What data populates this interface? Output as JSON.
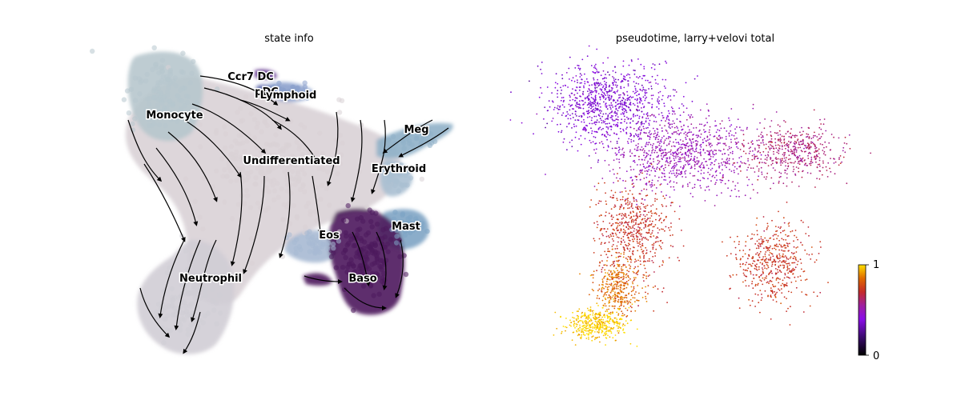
{
  "panels": [
    {
      "title": "state info",
      "type": "scatter",
      "labels": [
        "Ccr7 DC",
        "pDC",
        "Lymphoid",
        "Monocyte",
        "Meg",
        "Undifferentiated",
        "Erythroid",
        "Mast",
        "Eos",
        "Baso",
        "Neutrophil"
      ]
    },
    {
      "title": "pseudotime, larry+velovi total",
      "type": "scatter",
      "colorbar": {
        "min_label": "0",
        "max_label": "1",
        "colormap": "gnuplot"
      }
    }
  ],
  "chart_data": [
    {
      "type": "scatter",
      "title": "state info",
      "embedding": "UMAP with velocity streamlines",
      "grid": false,
      "clusters": [
        {
          "name": "Undifferentiated",
          "color": "#d9d1d6"
        },
        {
          "name": "Monocyte",
          "color": "#b7c7cd"
        },
        {
          "name": "Neutrophil",
          "color": "#d0cdd5"
        },
        {
          "name": "Baso",
          "color": "#4c1a5c"
        },
        {
          "name": "Eos",
          "color": "#a7b9d3"
        },
        {
          "name": "Mast",
          "color": "#7ea4c4"
        },
        {
          "name": "Meg",
          "color": "#8fb0c8"
        },
        {
          "name": "Erythroid",
          "color": "#a9bfd1"
        },
        {
          "name": "Lymphoid",
          "color": "#8aa0cc"
        },
        {
          "name": "pDC",
          "color": "#5563a6"
        },
        {
          "name": "Ccr7 DC",
          "color": "#5b2f8a"
        }
      ]
    },
    {
      "type": "scatter",
      "title": "pseudotime, larry+velovi total",
      "embedding": "UMAP",
      "color_variable": "pseudotime",
      "colorbar_range": [
        0,
        1
      ],
      "grid": false,
      "region_values": [
        {
          "region": "top-left arm",
          "value": 0.38
        },
        {
          "region": "center",
          "value": 0.5
        },
        {
          "region": "right arm",
          "value": 0.6
        },
        {
          "region": "middle stem",
          "value": 0.72
        },
        {
          "region": "lower-right lobe",
          "value": 0.73
        },
        {
          "region": "lower stem",
          "value": 0.85
        },
        {
          "region": "bottom-left tip",
          "value": 0.98
        }
      ]
    }
  ]
}
